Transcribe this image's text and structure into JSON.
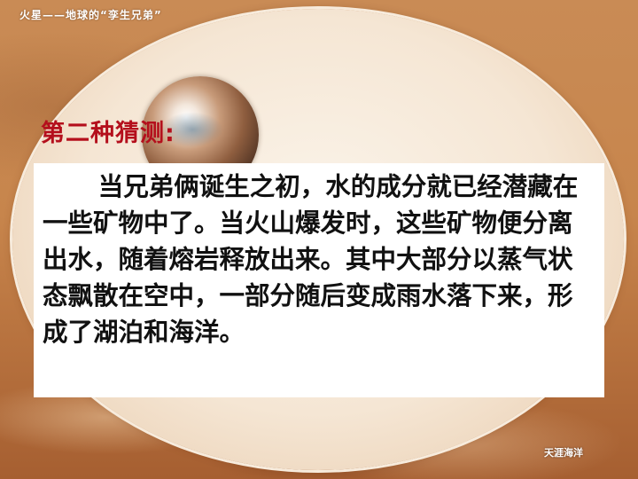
{
  "header": {
    "title": "火星——地球的“孪生兄弟”"
  },
  "content": {
    "heading": "第二种猜测:",
    "paragraph": "当兄弟俩诞生之初，水的成分就已经潜藏在一些矿物中了。当火山爆发时，这些矿物便分离出水，随着熔岩释放出来。其中大部分以蒸气状态飘散在空中，一部分随后变成雨水落下来，形成了湖泊和海洋。"
  },
  "footer": {
    "logo_text": "天涯海洋"
  },
  "colors": {
    "heading": "#b40f1c",
    "background": "#c7854c",
    "oval": "#fbf4ea"
  }
}
